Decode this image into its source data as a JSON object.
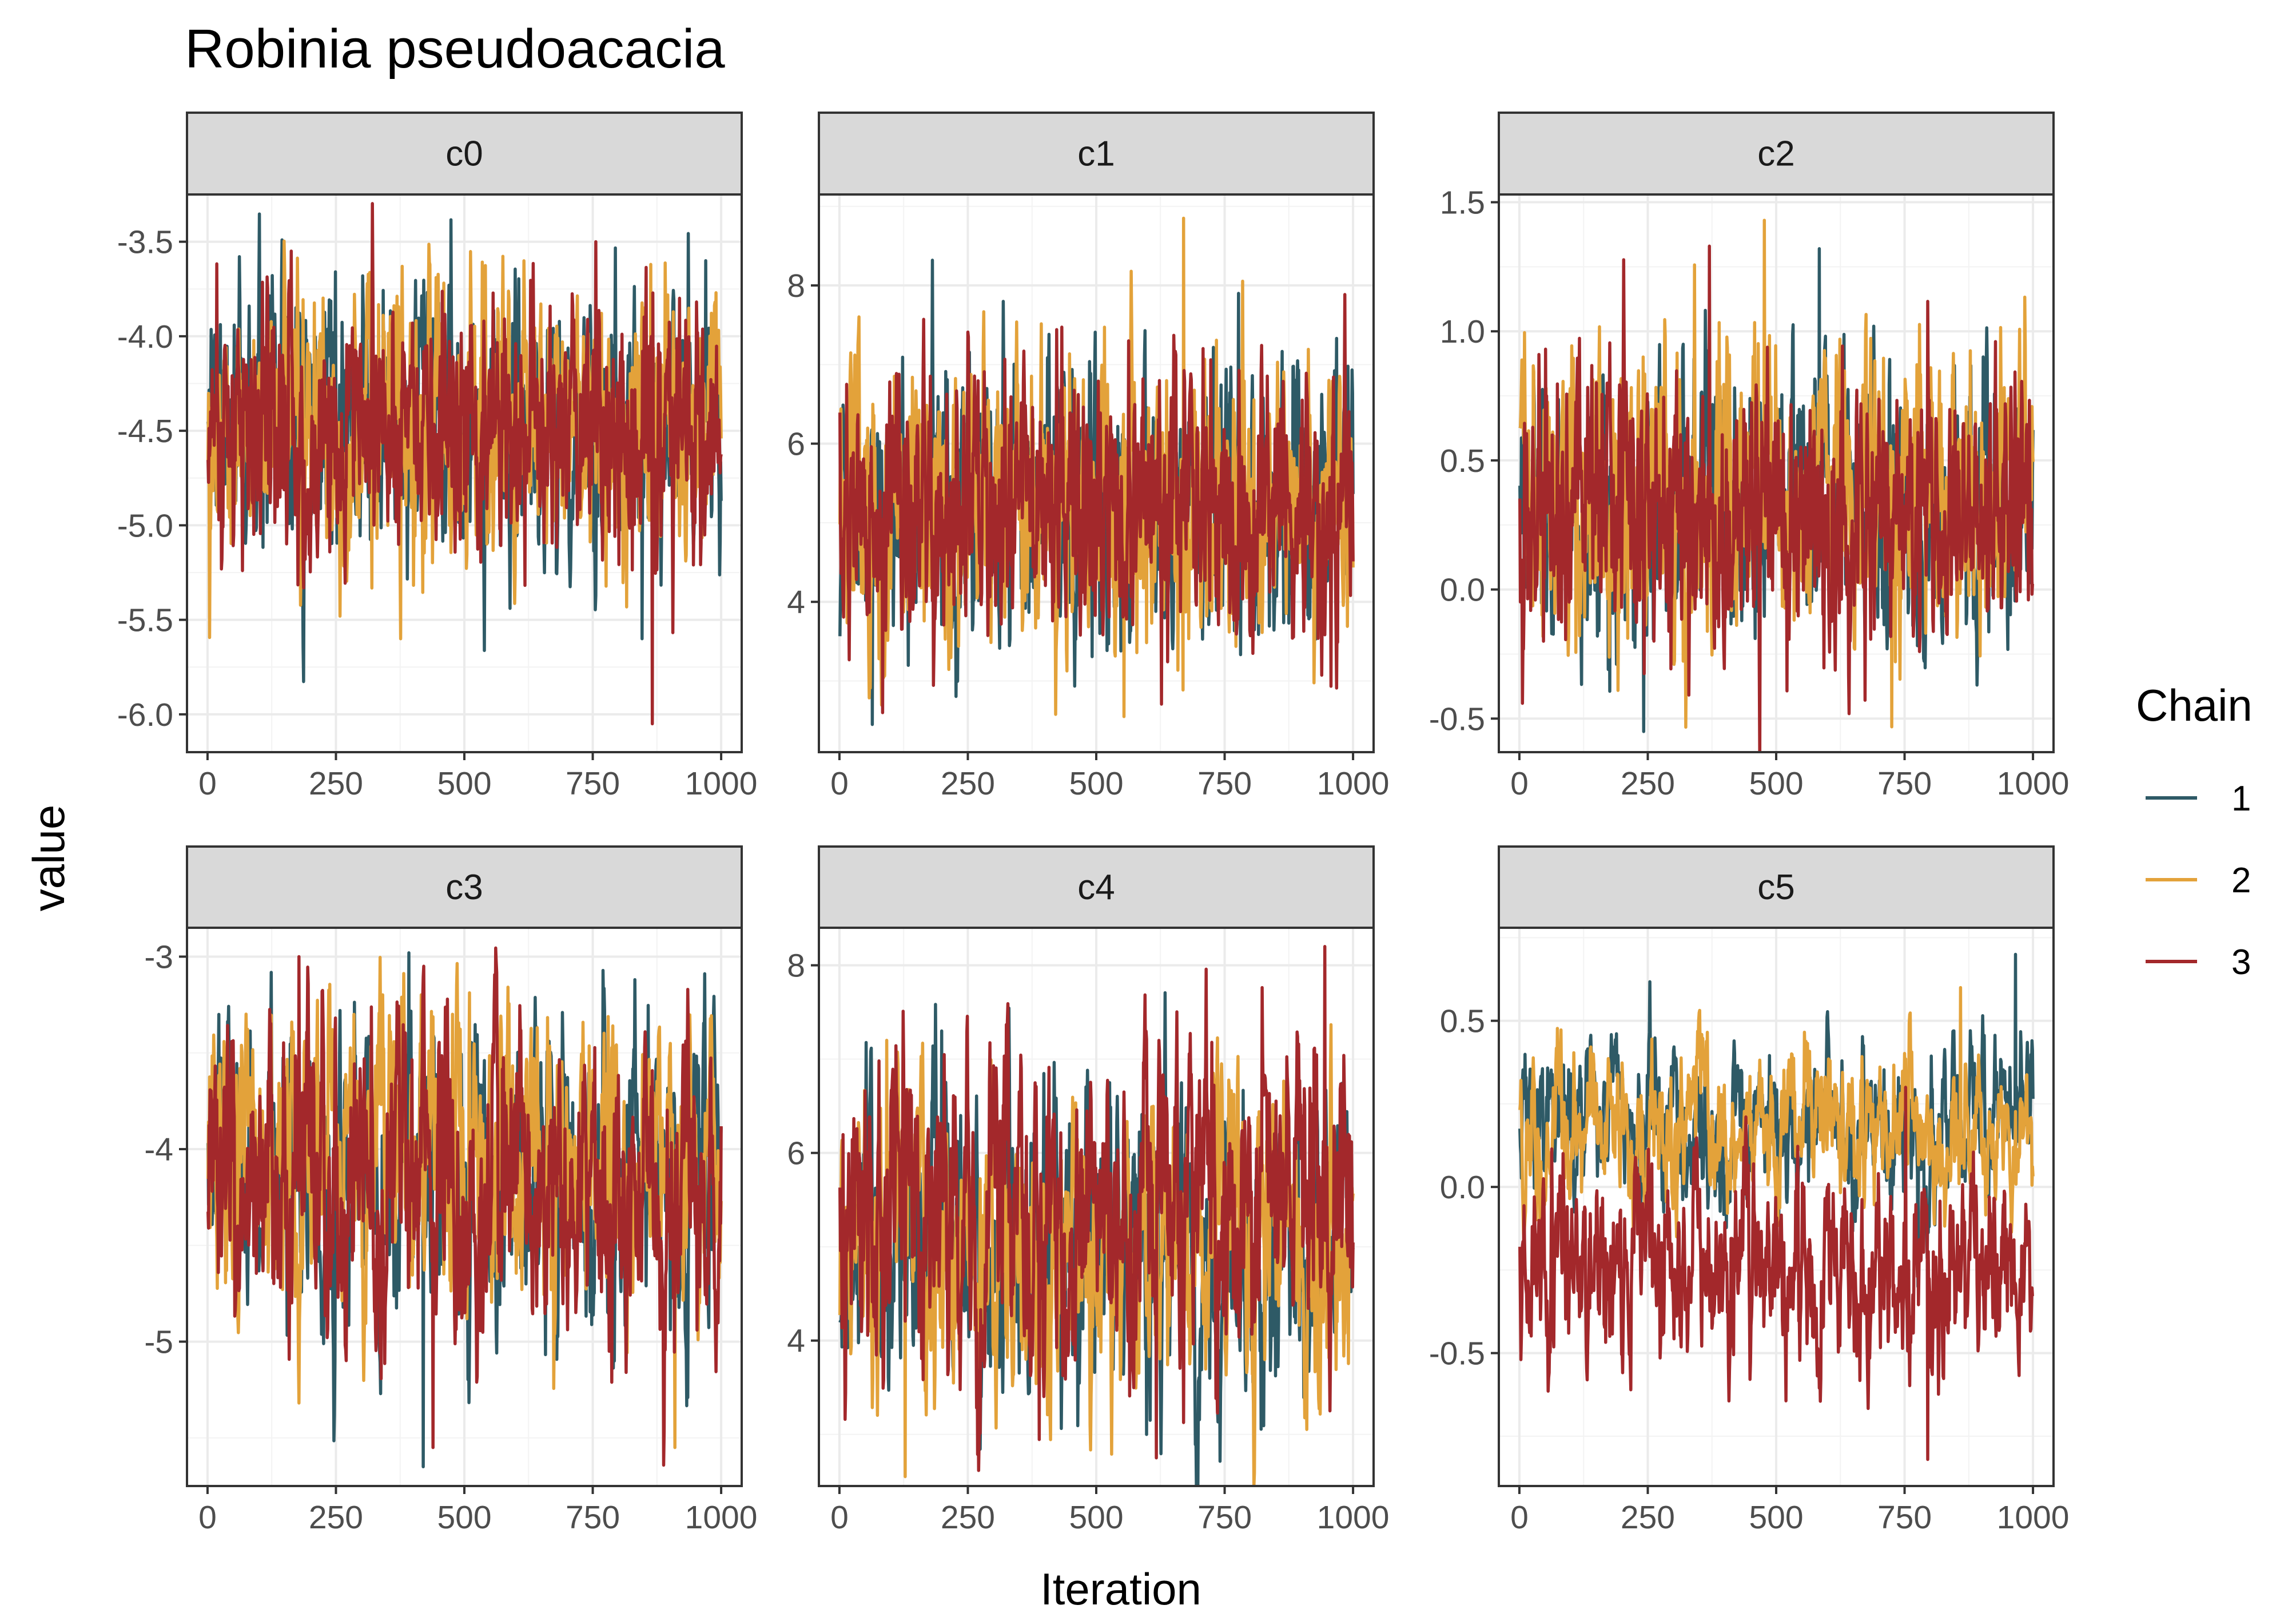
{
  "chart_data": {
    "type": "line",
    "title": "Robinia pseudoacacia",
    "xlabel": "Iteration",
    "ylabel": "value",
    "legend": {
      "title": "Chain",
      "position": "right",
      "entries": [
        {
          "label": "1",
          "color": "#2e5a66"
        },
        {
          "label": "2",
          "color": "#e3a23a"
        },
        {
          "label": "3",
          "color": "#a3282b"
        }
      ]
    },
    "facets": [
      {
        "label": "c0",
        "xlim": [
          -40,
          1040
        ],
        "ylim": [
          -6.2,
          -3.25
        ],
        "xticks": [
          0,
          250,
          500,
          750,
          1000
        ],
        "xtick_labels": [
          "0",
          "250",
          "500",
          "750",
          "1000"
        ],
        "yticks": [
          -6,
          -5.5,
          -5,
          -4.5,
          -4,
          -3.5
        ],
        "ytick_labels": [
          "-6.0",
          "-5.5",
          "-5.0",
          "-4.5",
          "-4.0",
          "-3.5"
        ],
        "series": [
          {
            "mean": -4.5,
            "sd": 0.33,
            "rho": 0.55,
            "spike_up": -3.6,
            "spike_down": -5.6
          },
          {
            "mean": -4.45,
            "sd": 0.33,
            "rho": 0.55,
            "spike_up": -3.62,
            "spike_down": -5.6
          },
          {
            "mean": -4.5,
            "sd": 0.33,
            "rho": 0.55,
            "spike_up": -3.5,
            "spike_down": -6.05
          }
        ]
      },
      {
        "label": "c1",
        "xlim": [
          -40,
          1040
        ],
        "ylim": [
          2.1,
          9.15
        ],
        "xticks": [
          0,
          250,
          500,
          750,
          1000
        ],
        "xtick_labels": [
          "0",
          "250",
          "500",
          "750",
          "1000"
        ],
        "yticks": [
          4,
          6,
          8
        ],
        "ytick_labels": [
          "4",
          "6",
          "8"
        ],
        "series": [
          {
            "mean": 5.2,
            "sd": 0.8,
            "rho": 0.55,
            "spike_up": 7.9,
            "spike_down": 2.45
          },
          {
            "mean": 5.3,
            "sd": 0.85,
            "rho": 0.55,
            "spike_up": 8.85,
            "spike_down": 2.55
          },
          {
            "mean": 5.2,
            "sd": 0.8,
            "rho": 0.55,
            "spike_up": 7.3,
            "spike_down": 2.6
          }
        ]
      },
      {
        "label": "c2",
        "xlim": [
          -40,
          1040
        ],
        "ylim": [
          -0.63,
          1.53
        ],
        "xticks": [
          0,
          250,
          500,
          750,
          1000
        ],
        "xtick_labels": [
          "0",
          "250",
          "500",
          "750",
          "1000"
        ],
        "yticks": [
          -0.5,
          0,
          0.5,
          1,
          1.5
        ],
        "ytick_labels": [
          "-0.5",
          "0.0",
          "0.5",
          "1.0",
          "1.5"
        ],
        "series": [
          {
            "mean": 0.3,
            "sd": 0.25,
            "rho": 0.55,
            "spike_up": 1.32,
            "spike_down": -0.55
          },
          {
            "mean": 0.35,
            "sd": 0.27,
            "rho": 0.55,
            "spike_up": 1.43,
            "spike_down": -0.28
          },
          {
            "mean": 0.3,
            "sd": 0.25,
            "rho": 0.55,
            "spike_up": 1.33,
            "spike_down": -0.2
          }
        ]
      },
      {
        "label": "c3",
        "xlim": [
          -40,
          1040
        ],
        "ylim": [
          -5.75,
          -2.85
        ],
        "xticks": [
          0,
          250,
          500,
          750,
          1000
        ],
        "xtick_labels": [
          "0",
          "250",
          "500",
          "750",
          "1000"
        ],
        "yticks": [
          -5,
          -4,
          -3
        ],
        "ytick_labels": [
          "-5",
          "-4",
          "-3"
        ],
        "series": [
          {
            "mean": -4.1,
            "sd": 0.38,
            "rho": 0.7,
            "spike_up": -2.98,
            "spike_down": -5.65
          },
          {
            "mean": -4.1,
            "sd": 0.38,
            "rho": 0.7,
            "spike_up": -3.3,
            "spike_down": -5.55
          },
          {
            "mean": -4.2,
            "sd": 0.38,
            "rho": 0.7,
            "spike_up": -3.0,
            "spike_down": -5.55
          }
        ]
      },
      {
        "label": "c4",
        "xlim": [
          -40,
          1040
        ],
        "ylim": [
          2.45,
          8.4
        ],
        "xticks": [
          0,
          250,
          500,
          750,
          1000
        ],
        "xtick_labels": [
          "0",
          "250",
          "500",
          "750",
          "1000"
        ],
        "yticks": [
          4,
          6,
          8
        ],
        "ytick_labels": [
          "4",
          "6",
          "8"
        ],
        "series": [
          {
            "mean": 5.0,
            "sd": 0.8,
            "rho": 0.72,
            "spike_up": 7.3,
            "spike_down": 3.0
          },
          {
            "mean": 5.0,
            "sd": 0.8,
            "rho": 0.72,
            "spike_up": 7.2,
            "spike_down": 2.55
          },
          {
            "mean": 5.3,
            "sd": 0.85,
            "rho": 0.72,
            "spike_up": 8.2,
            "spike_down": 2.75
          }
        ]
      },
      {
        "label": "c5",
        "xlim": [
          -40,
          1040
        ],
        "ylim": [
          -0.9,
          0.78
        ],
        "xticks": [
          0,
          250,
          500,
          750,
          1000
        ],
        "xtick_labels": [
          "0",
          "250",
          "500",
          "750",
          "1000"
        ],
        "yticks": [
          -0.5,
          0,
          0.5
        ],
        "ytick_labels": [
          "-0.5",
          "0.0",
          "0.5"
        ],
        "series": [
          {
            "mean": 0.2,
            "sd": 0.12,
            "rho": 0.75,
            "spike_up": 0.7,
            "spike_down": -0.3
          },
          {
            "mean": 0.17,
            "sd": 0.12,
            "rho": 0.75,
            "spike_up": 0.6,
            "spike_down": -0.15
          },
          {
            "mean": -0.25,
            "sd": 0.15,
            "rho": 0.75,
            "spike_up": 0.3,
            "spike_down": -0.82
          }
        ]
      }
    ],
    "iterations": 1000,
    "grid": true
  }
}
